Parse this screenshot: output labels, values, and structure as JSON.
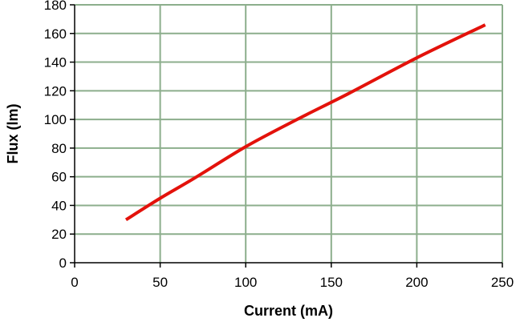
{
  "chart_data": {
    "type": "line",
    "title": "",
    "xlabel": "Current (mA)",
    "ylabel": "Flux (lm)",
    "xlim": [
      0,
      250
    ],
    "ylim": [
      0,
      180
    ],
    "x_ticks": [
      0,
      50,
      100,
      150,
      200,
      250
    ],
    "y_ticks": [
      0,
      20,
      40,
      60,
      80,
      100,
      120,
      140,
      160,
      180
    ],
    "grid": true,
    "legend": "none",
    "series": [
      {
        "color": "#e3120b",
        "x": [
          30,
          50,
          70,
          100,
          130,
          160,
          200,
          240
        ],
        "y": [
          30,
          45,
          59,
          81,
          100,
          118,
          143,
          166
        ]
      }
    ]
  },
  "colors": {
    "grid": "#8cae8c",
    "plot_border": "#8cae8c",
    "axis": "#000000"
  }
}
